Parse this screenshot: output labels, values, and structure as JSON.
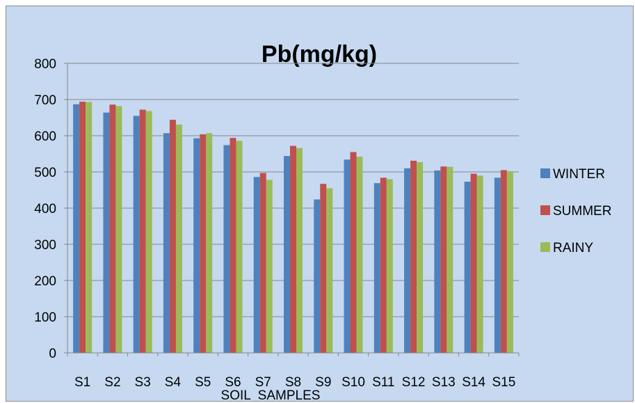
{
  "chart_data": {
    "type": "bar",
    "title": "Pb(mg/kg)",
    "xlabel": "SOIL  SAMPLES",
    "ylabel": "",
    "ylim": [
      0,
      800
    ],
    "yticks": [
      0,
      100,
      200,
      300,
      400,
      500,
      600,
      700,
      800
    ],
    "grid": true,
    "legend_position": "right",
    "categories": [
      "S1",
      "S2",
      "S3",
      "S4",
      "S5",
      "S6",
      "S7",
      "S8",
      "S9",
      "S10",
      "S11",
      "S12",
      "S13",
      "S14",
      "S15"
    ],
    "series": [
      {
        "name": "WINTER",
        "color": "#4f81bd",
        "values": [
          687,
          664,
          655,
          607,
          593,
          574,
          486,
          544,
          424,
          534,
          469,
          510,
          504,
          473,
          484
        ]
      },
      {
        "name": "SUMMER",
        "color": "#c0504d",
        "values": [
          694,
          686,
          672,
          644,
          604,
          594,
          497,
          572,
          467,
          555,
          484,
          531,
          515,
          495,
          505
        ]
      },
      {
        "name": "RAINY",
        "color": "#9bbb59",
        "values": [
          693,
          682,
          668,
          631,
          607,
          586,
          478,
          566,
          455,
          542,
          480,
          527,
          514,
          490,
          502
        ]
      }
    ]
  }
}
